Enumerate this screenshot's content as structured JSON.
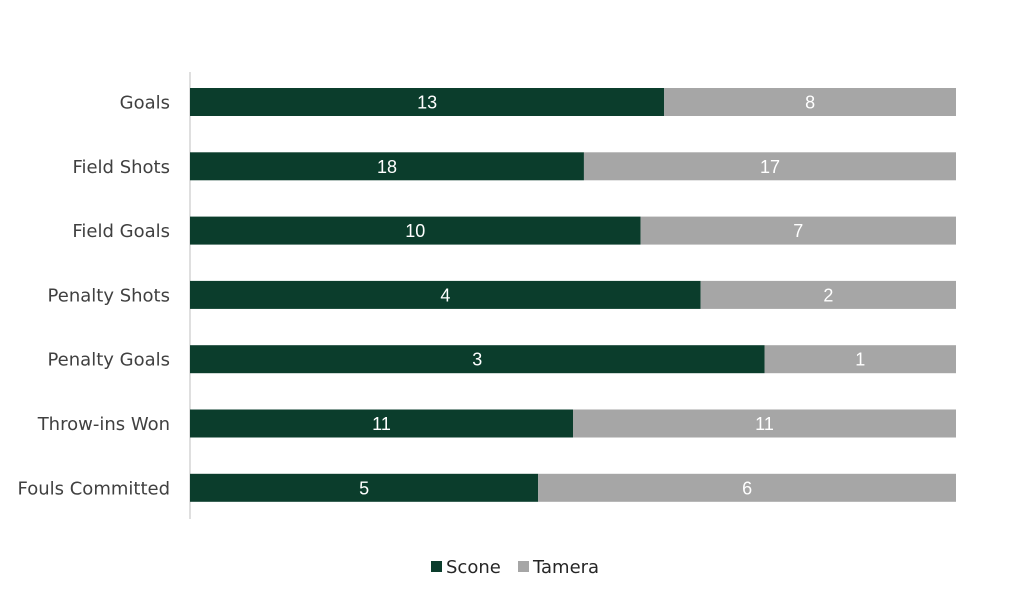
{
  "chart_data": {
    "type": "bar",
    "orientation": "horizontal",
    "stacked": "percent",
    "categories": [
      "Goals",
      "Field Shots",
      "Field Goals",
      "Penalty Shots",
      "Penalty Goals",
      "Throw-ins Won",
      "Fouls Committed"
    ],
    "series": [
      {
        "name": "Scone",
        "values": [
          13,
          18,
          10,
          4,
          3,
          11,
          5
        ],
        "color": "#0b3d2c"
      },
      {
        "name": "Tamera",
        "values": [
          8,
          17,
          7,
          2,
          1,
          11,
          6
        ],
        "color": "#a6a6a6"
      }
    ],
    "data_labels": true,
    "title": "",
    "xlabel": "",
    "ylabel": "",
    "grid": false,
    "legend_position": "bottom"
  }
}
